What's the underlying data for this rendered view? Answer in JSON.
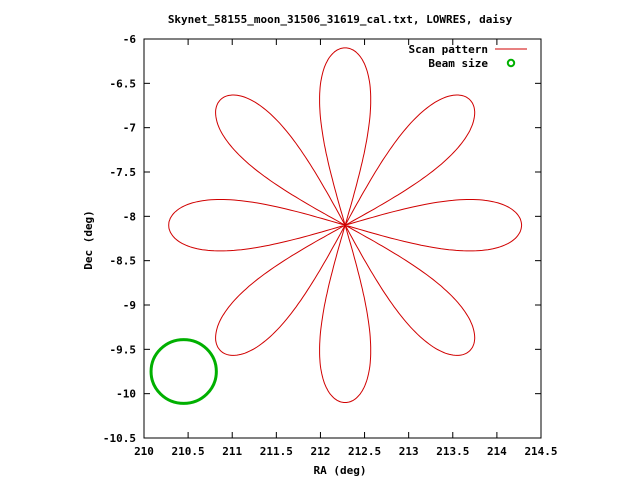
{
  "chart_data": {
    "type": "line",
    "title": "Skynet_58155_moon_31506_31619_cal.txt, LOWRES, daisy",
    "xlabel": "RA (deg)",
    "ylabel": "Dec (deg)",
    "xlim": [
      210,
      214.5
    ],
    "ylim": [
      -10.5,
      -6
    ],
    "x_ticks": [
      "210",
      "210.5",
      "211",
      "211.5",
      "212",
      "212.5",
      "213",
      "213.5",
      "214",
      "214.5"
    ],
    "y_ticks": [
      "-6",
      "-6.5",
      "-7",
      "-7.5",
      "-8",
      "-8.5",
      "-9",
      "-9.5",
      "-10",
      "-10.5"
    ],
    "legend_position": "top-right",
    "grid": false,
    "series": [
      {
        "name": "Scan pattern",
        "kind": "daisy-scan",
        "color": "#d00000",
        "center": [
          212.28,
          -8.1
        ],
        "petals": 8,
        "ra_amplitude": 2.0,
        "dec_amplitude": 2.0,
        "petal_angles_deg": [
          0,
          45,
          90,
          135,
          180,
          225,
          270,
          315
        ],
        "petal_half_width": 0.29
      },
      {
        "name": "Beam size",
        "kind": "circle",
        "color": "#00b000",
        "center": [
          210.45,
          -9.75
        ],
        "radius_ra": 0.37,
        "radius_dec": 0.36
      }
    ]
  }
}
